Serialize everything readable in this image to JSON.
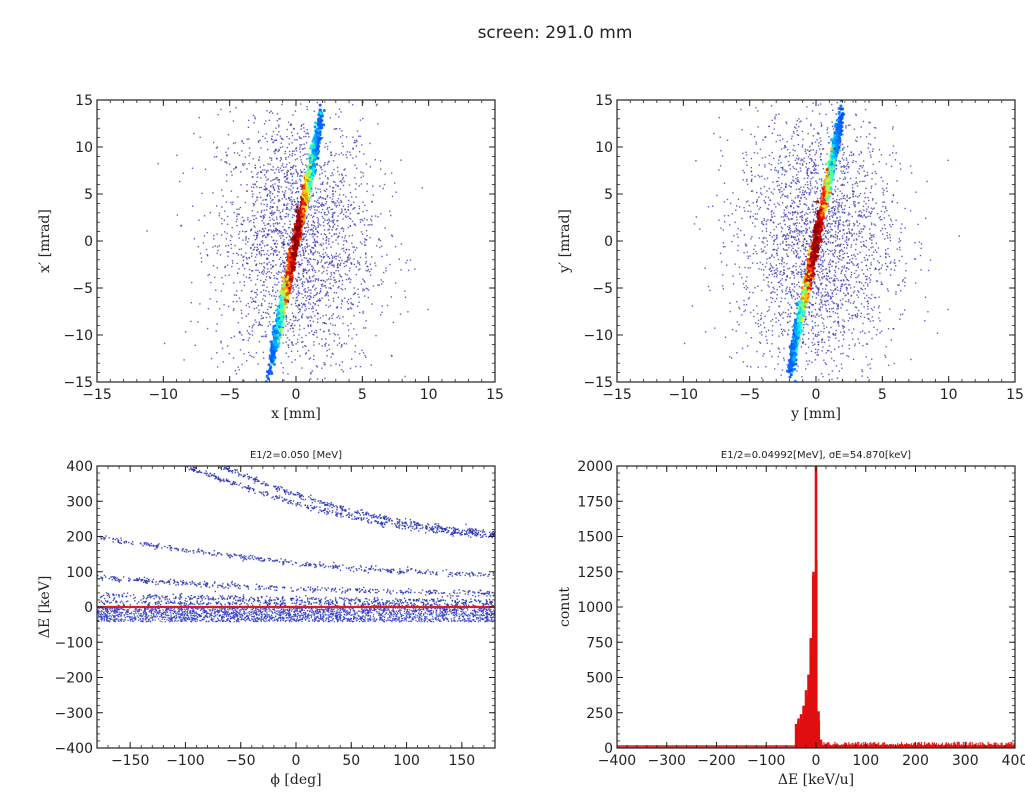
{
  "figure": {
    "suptitle": "screen: 291.0 mm"
  },
  "chart_data": [
    {
      "type": "scatter",
      "id": "xx",
      "title": "",
      "xlabel": "x [mm]",
      "ylabel": "x′ [mrad]",
      "xlim": [
        -15,
        15
      ],
      "ylim": [
        -15,
        15
      ],
      "xticks": [
        -15,
        -10,
        -5,
        0,
        5,
        10,
        15
      ],
      "yticks": [
        -15,
        -10,
        -5,
        0,
        5,
        10,
        15
      ],
      "core": {
        "slope_mrad_per_mm": 8.0,
        "x_span": [
          -1.8,
          1.8
        ],
        "width_mm": 0.35
      },
      "halo": {
        "x_sigma_mm": 3.0,
        "y_sigma_mrad": 6.0
      },
      "colormap": "jet density"
    },
    {
      "type": "scatter",
      "id": "yy",
      "title": "",
      "xlabel": "y [mm]",
      "ylabel": "y′ [mrad]",
      "xlim": [
        -15,
        15
      ],
      "ylim": [
        -15,
        15
      ],
      "xticks": [
        -15,
        -10,
        -5,
        0,
        5,
        10,
        15
      ],
      "yticks": [
        -15,
        -10,
        -5,
        0,
        5,
        10,
        15
      ],
      "core": {
        "slope_mrad_per_mm": 8.0,
        "x_span": [
          -1.8,
          1.8
        ],
        "width_mm": 0.35
      },
      "halo": {
        "x_sigma_mm": 3.0,
        "y_sigma_mrad": 6.0
      },
      "colormap": "jet density"
    },
    {
      "type": "scatter",
      "id": "phase",
      "title": "E1/2=0.050 [MeV]",
      "xlabel": "ϕ [deg]",
      "ylabel": "ΔE [keV]",
      "xlim": [
        -180,
        180
      ],
      "ylim": [
        -400,
        400
      ],
      "xticks": [
        -150,
        -100,
        -50,
        0,
        50,
        100,
        150
      ],
      "yticks": [
        -400,
        -300,
        -200,
        -100,
        0,
        100,
        200,
        300,
        400
      ],
      "bands": [
        {
          "from": [
            -70,
            400
          ],
          "to": [
            180,
            210
          ]
        },
        {
          "from": [
            -100,
            400
          ],
          "to": [
            180,
            200
          ]
        },
        {
          "from": [
            -180,
            200
          ],
          "to": [
            180,
            92
          ]
        },
        {
          "from": [
            -180,
            85
          ],
          "to": [
            180,
            40
          ]
        },
        {
          "from": [
            -180,
            35
          ],
          "to": [
            180,
            18
          ]
        },
        {
          "from": [
            -180,
            15
          ],
          "to": [
            180,
            8
          ]
        }
      ],
      "core_line": {
        "from": [
          -180,
          0
        ],
        "to": [
          180,
          0
        ],
        "color": "#d62020"
      },
      "noise_band": [
        -40,
        0
      ]
    },
    {
      "type": "bar",
      "id": "hist",
      "title": "E1/2=0.04992[MeV], σE=54.870[keV]",
      "xlabel": "ΔE [keV/u]",
      "ylabel": "conut",
      "xlim": [
        -400,
        400
      ],
      "ylim": [
        0,
        2000
      ],
      "xticks": [
        -400,
        -300,
        -200,
        -100,
        0,
        100,
        200,
        300,
        400
      ],
      "yticks": [
        0,
        250,
        500,
        750,
        1000,
        1250,
        1500,
        1750,
        2000
      ],
      "color": "#e01010",
      "bins": [
        {
          "x": -40,
          "y": 170
        },
        {
          "x": -35,
          "y": 210
        },
        {
          "x": -30,
          "y": 240
        },
        {
          "x": -25,
          "y": 300
        },
        {
          "x": -20,
          "y": 410
        },
        {
          "x": -15,
          "y": 520
        },
        {
          "x": -10,
          "y": 780
        },
        {
          "x": -5,
          "y": 1250
        },
        {
          "x": 0,
          "y": 2000
        },
        {
          "x": 5,
          "y": 260
        },
        {
          "x": 10,
          "y": 60
        },
        {
          "x": 20,
          "y": 30
        },
        {
          "x": 40,
          "y": 25
        },
        {
          "x": 60,
          "y": 35
        },
        {
          "x": 80,
          "y": 30
        },
        {
          "x": 100,
          "y": 28
        },
        {
          "x": 120,
          "y": 30
        },
        {
          "x": 150,
          "y": 22
        },
        {
          "x": 200,
          "y": 22
        },
        {
          "x": 250,
          "y": 20
        },
        {
          "x": 300,
          "y": 20
        },
        {
          "x": 350,
          "y": 18
        },
        {
          "x": 400,
          "y": 22
        }
      ],
      "baseline": 20
    }
  ]
}
